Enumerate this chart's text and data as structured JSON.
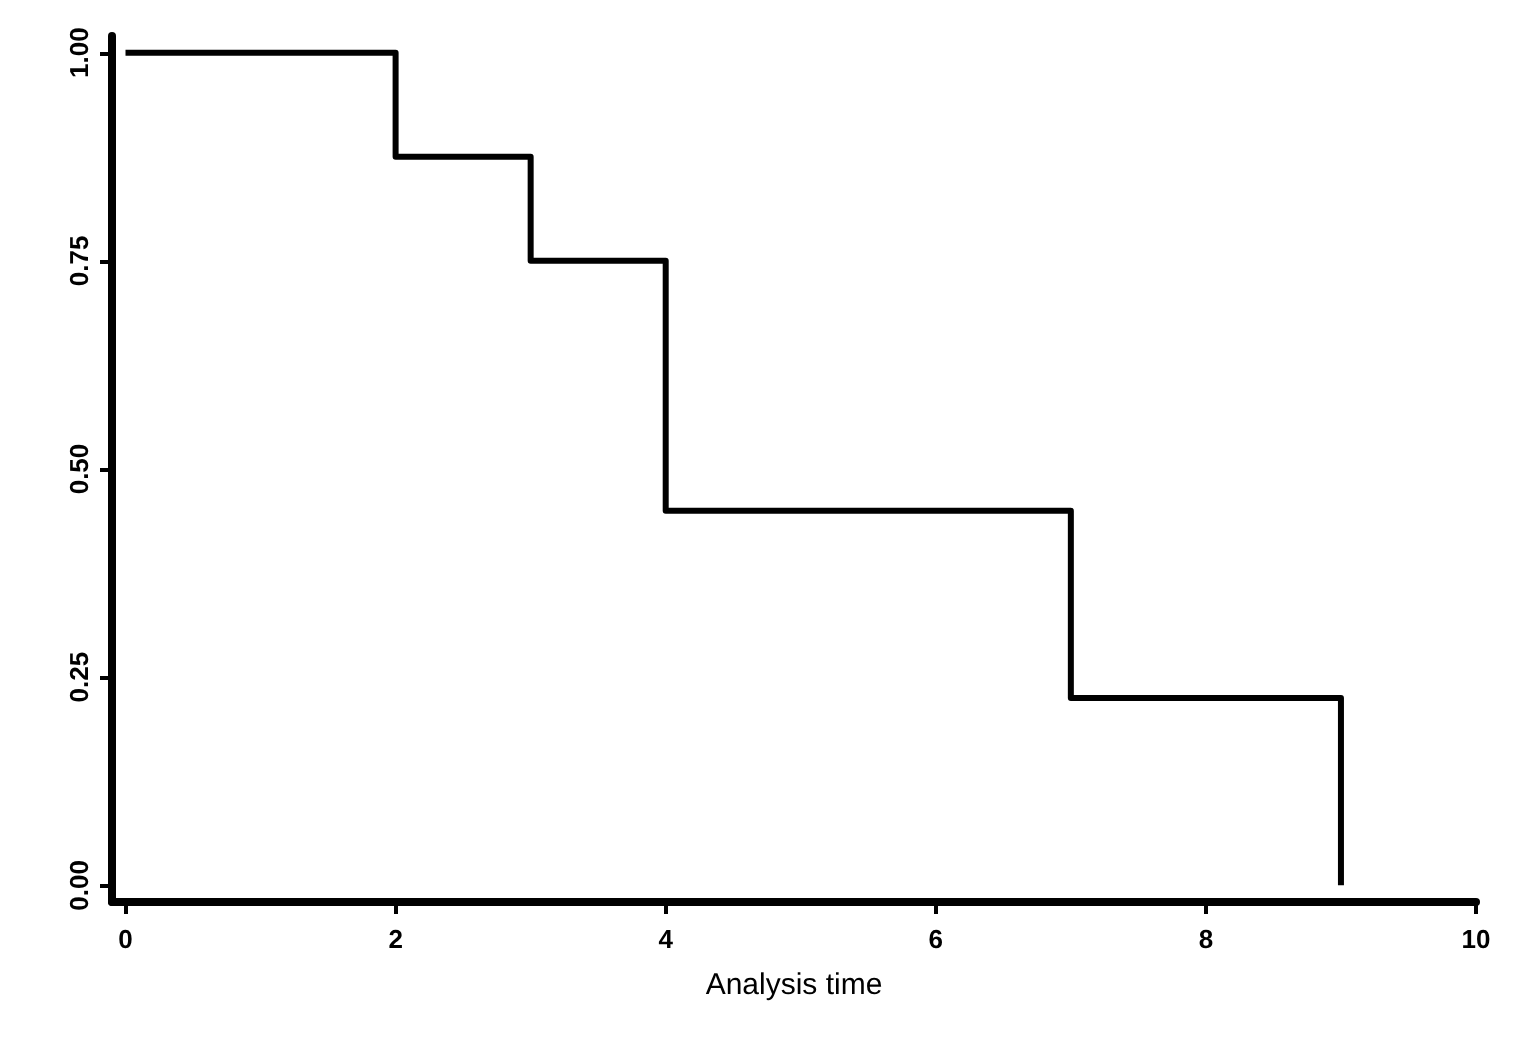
{
  "chart_data": {
    "type": "step",
    "xlabel": "Analysis time",
    "x": [
      0,
      2,
      3,
      4,
      7,
      9
    ],
    "series": [
      {
        "color": "#000000",
        "values": [
          1,
          0.875,
          0.75,
          0.45,
          0.225,
          0
        ]
      }
    ],
    "xlim": [
      -0.1,
      10
    ],
    "ylim": [
      -0.02,
      1.02
    ],
    "xticks": [
      0,
      2,
      4,
      6,
      8,
      10
    ],
    "yticks": [
      {
        "value": 0,
        "label": "0.00"
      },
      {
        "value": 0.25,
        "label": "0.25"
      },
      {
        "value": 0.5,
        "label": "0.50"
      },
      {
        "value": 0.75,
        "label": "0.75"
      },
      {
        "value": 1,
        "label": "1.00"
      }
    ],
    "grid": false,
    "marker": "none",
    "line_style": "solid"
  }
}
